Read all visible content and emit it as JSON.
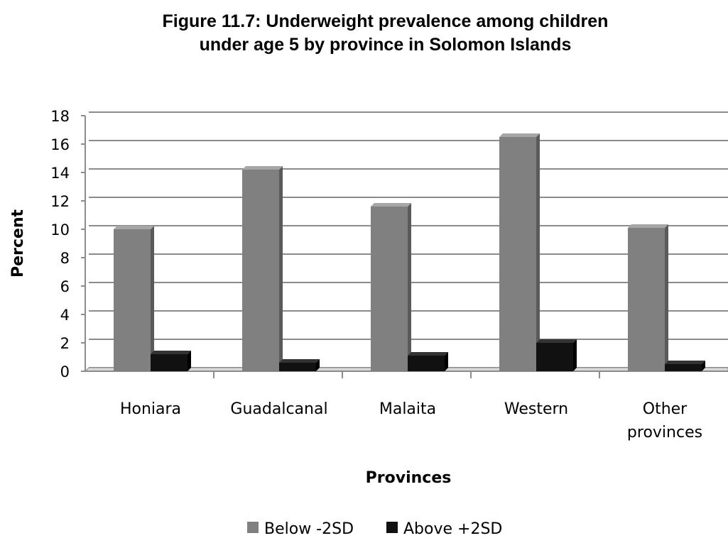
{
  "chart_data": {
    "type": "bar",
    "title_lines": [
      "Figure 11.7:  Underweight prevalence among children",
      "under age 5 by province in Solomon Islands"
    ],
    "xlabel": "Provinces",
    "ylabel": "Percent",
    "ylim": [
      0,
      18
    ],
    "yticks": [
      0,
      2,
      4,
      6,
      8,
      10,
      12,
      14,
      16,
      18
    ],
    "grid": true,
    "legend_position": "bottom",
    "categories": [
      [
        "Honiara"
      ],
      [
        "Guadalcanal"
      ],
      [
        "Malaita"
      ],
      [
        "Western"
      ],
      [
        "Other",
        "provinces"
      ]
    ],
    "series": [
      {
        "name": "Below -2SD",
        "color": "#808080",
        "values": [
          10.0,
          14.2,
          11.6,
          16.5,
          10.1
        ]
      },
      {
        "name": "Above +2SD",
        "color": "#111111",
        "values": [
          1.2,
          0.6,
          1.1,
          2.0,
          0.5
        ]
      }
    ]
  }
}
